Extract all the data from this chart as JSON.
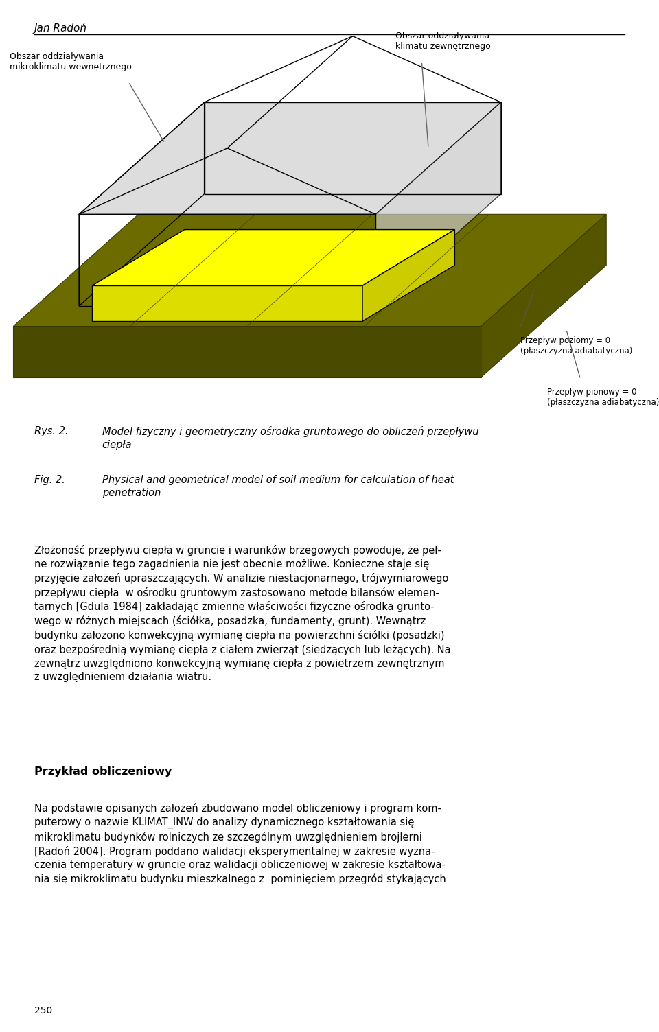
{
  "header_author": "Jan Radoń",
  "bg_color": "#ffffff",
  "olive_dark": "#5a5a00",
  "olive_mid": "#6b6b00",
  "olive_light": "#7a7a00",
  "yellow_top": "#ffff00",
  "yellow_front": "#e0e000",
  "yellow_right": "#cccc00",
  "label_left_line1": "Obszar oddziaływania",
  "label_left_line2": "mikroklimatu wewnętrznego",
  "label_right_line1": "Obszar oddziaływania",
  "label_right_line2": "klimatu zewnętrznego",
  "label_poziomy_line1": "Przepływ poziomy = 0",
  "label_poziomy_line2": "(płaszczyzna adiabatyczna)",
  "label_pionowy_line1": "Przepływ pionowy = 0",
  "label_pionowy_line2": "(płaszczyzna adiabatyczna)",
  "caption_rys": "Rys. 2.",
  "caption_pl": "Model fizyczny i geometryczny ośrodka gruntowego do obliczeń przepływu\nciepła",
  "caption_fig": "Fig. 2.",
  "caption_en": "Physical and geometrical model of soil medium for calculation of heat\npenetration",
  "para1_line1": "Złożoność przepływu ciepła w gruncie i warunków brzegowych powoduje, że peł-",
  "para1_line2": "ne rozwiązanie tego zagadnienia nie jest obecnie możliwe. Konieczne staje się",
  "para1_line3": "przyjęcie założeń upraszczających. W analizie niestacjonarnego, trójwymiarowego",
  "para1_line4": "przepływu ciepła  w ośrodku gruntowym zastosowano metodę bilansów elemen-",
  "para1_line5": "tarnych [Gdula 1984] zakładając zmienne właściwości fizyczne ośrodka grunto-",
  "para1_line6": "wego w różnych miejscach (ściółka, posadzka, fundamenty, grunt). Wewnątrz",
  "para1_line7": "budynku założono konwekcyjną wymianę ciepła na powierzchni ściółki (posadzki)",
  "para1_line8": "oraz bezpośrednią wymianę ciepła z ciałem zwierząt (siedzących lub leżących). Na",
  "para1_line9": "zewnątrz uwzględniono konwekcyjną wymianę ciepła z powietrzem zewnętrznym",
  "para1_line10": "z uwzględnieniem działania wiatru.",
  "heading2": "Przykład obliczeniowy",
  "para2_line1": "Na podstawie opisanych założeń zbudowano model obliczeniowy i program kom-",
  "para2_line2": "puterowy o nazwie KLIMAT_INW do analizy dynamicznego kształtowania się",
  "para2_line3": "mikroklimatu budynków rolniczych ze szczególnym uwzględnieniem brojlerni",
  "para2_line4": "[Radoń 2004]. Program poddano walidacji eksperymentalnej w zakresie wyzna-",
  "para2_line5": "czenia temperatury w gruncie oraz walidacji obliczeniowej w zakresie kształtowa-",
  "para2_line6": "nia się mikroklimatu budynku mieszkalnego z  pominięciem przegród stykających",
  "page_number": "250"
}
